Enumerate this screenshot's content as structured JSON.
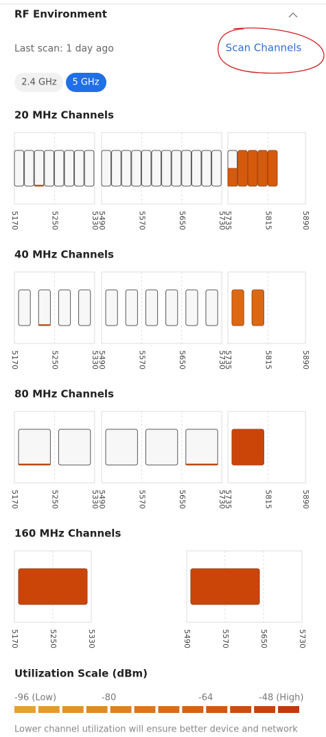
{
  "header": {
    "title": "RF Environment",
    "last_scan": "Last scan: 1 day ago",
    "scan_button": "Scan Channels"
  },
  "bands": [
    "2.4 GHz",
    "5 GHz"
  ],
  "chart_data": [
    {
      "type": "channel-occupancy",
      "title": "20 MHz Channels",
      "bandwidth": 20,
      "color": "#d65a0c",
      "panels": [
        {
          "xlim": [
            5170,
            5330
          ],
          "xticks": [
            5170,
            5250,
            5330
          ],
          "values": [
            0,
            0,
            3,
            0,
            0,
            0,
            0,
            0
          ]
        },
        {
          "xlim": [
            5490,
            5730
          ],
          "xticks": [
            5490,
            5570,
            5650,
            5730
          ],
          "values": [
            0,
            0,
            0,
            0,
            0,
            0,
            0,
            0,
            0,
            0,
            0,
            0
          ]
        },
        {
          "xlim": [
            5735,
            5890
          ],
          "xticks": [
            5735,
            5815,
            5890
          ],
          "values": [
            50,
            100,
            100,
            100,
            100
          ]
        }
      ]
    },
    {
      "type": "channel-occupancy",
      "title": "40 MHz Channels",
      "bandwidth": 40,
      "color": "#dc6812",
      "panels": [
        {
          "xlim": [
            5170,
            5330
          ],
          "xticks": [
            5170,
            5250,
            5330
          ],
          "values": [
            0,
            3,
            0,
            0
          ]
        },
        {
          "xlim": [
            5490,
            5730
          ],
          "xticks": [
            5490,
            5570,
            5650,
            5730
          ],
          "values": [
            0,
            0,
            0,
            0,
            0,
            0
          ]
        },
        {
          "xlim": [
            5735,
            5890
          ],
          "xticks": [
            5735,
            5815,
            5890
          ],
          "values": [
            100,
            100
          ]
        }
      ]
    },
    {
      "type": "channel-occupancy",
      "title": "80 MHz Channels",
      "bandwidth": 80,
      "color": "#cc4508",
      "panels": [
        {
          "xlim": [
            5170,
            5330
          ],
          "xticks": [
            5170,
            5250,
            5330
          ],
          "values": [
            3,
            0
          ]
        },
        {
          "xlim": [
            5490,
            5730
          ],
          "xticks": [
            5490,
            5570,
            5650,
            5730
          ],
          "values": [
            0,
            0,
            3
          ]
        },
        {
          "xlim": [
            5735,
            5890
          ],
          "xticks": [
            5735,
            5815,
            5890
          ],
          "values": [
            100
          ]
        }
      ]
    },
    {
      "type": "channel-occupancy",
      "title": "160 MHz Channels",
      "bandwidth": 160,
      "color": "#cc4508",
      "panels": [
        {
          "xlim": [
            5170,
            5330
          ],
          "xticks": [
            5170,
            5250,
            5330
          ],
          "values": [
            100
          ]
        },
        {
          "xlim": [
            5490,
            5730
          ],
          "xticks": [
            5490,
            5570,
            5650,
            5730
          ],
          "values": [
            100
          ]
        }
      ]
    }
  ],
  "scale": {
    "title": "Utilization Scale (dBm)",
    "labels": [
      "-96 (Low)",
      "-80",
      "-64",
      "-48 (High)"
    ],
    "colors": [
      "#e8a030",
      "#e69a2c",
      "#e49228",
      "#e28a24",
      "#e08020",
      "#dd761c",
      "#da6c18",
      "#d66214",
      "#d25812",
      "#cc4e0e",
      "#c6440c",
      "#c03a0a"
    ]
  },
  "footer": "Lower channel utilization will ensure better device and network"
}
